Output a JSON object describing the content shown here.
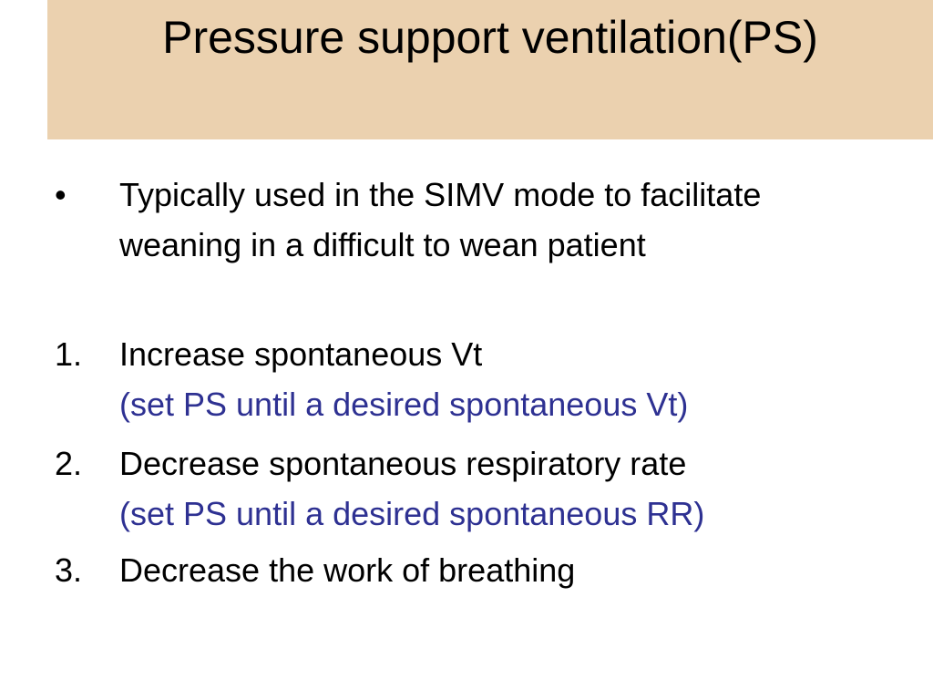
{
  "title": "Pressure support ventilation(PS)",
  "items": [
    {
      "marker": "•",
      "text": "Typically used in the SIMV mode to facilitate weaning in a difficult to wean patient"
    },
    {
      "marker": "1.",
      "text": "Increase spontaneous Vt",
      "sub": "(set PS until a desired spontaneous Vt)"
    },
    {
      "marker": "2.",
      "text": "Decrease spontaneous respiratory rate",
      "sub": "(set PS until a desired spontaneous RR)"
    },
    {
      "marker": "3.",
      "text": "Decrease the work of breathing"
    }
  ]
}
